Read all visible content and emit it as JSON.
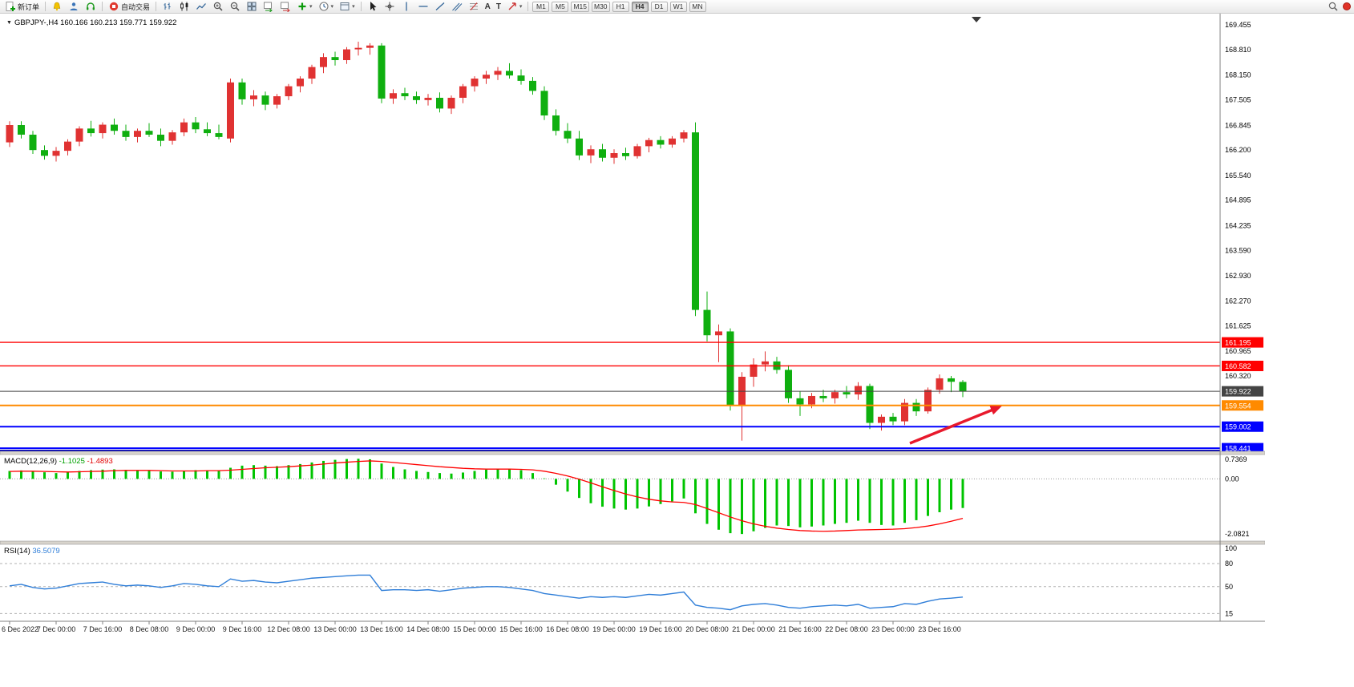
{
  "toolbar": {
    "new_order_label": "新订单",
    "auto_trading_label": "自动交易",
    "timeframes": [
      "M1",
      "M5",
      "M15",
      "M30",
      "H1",
      "H4",
      "D1",
      "W1",
      "MN"
    ],
    "active_timeframe": "H4"
  },
  "chart_data": [
    {
      "type": "candlestick",
      "title": "GBPJPY-,H4 160.166 160.213 159.771 159.922",
      "symbol": "GBPJPY-",
      "period": "H4",
      "ohlc_display": {
        "open": "160.166",
        "high": "160.213",
        "low": "159.771",
        "close": "159.922"
      },
      "up_color": "#e03232",
      "down_color": "#0faf0f",
      "ylim": [
        158.36,
        169.75
      ],
      "y_axis_ticks": [
        "169.455",
        "168.810",
        "168.150",
        "167.505",
        "166.845",
        "166.200",
        "165.540",
        "164.895",
        "164.235",
        "163.590",
        "162.930",
        "162.270",
        "161.625",
        "160.965",
        "160.320"
      ],
      "hlines": [
        {
          "label": "161.195",
          "price": 161.195,
          "color": "#ff0000",
          "width": 1.4
        },
        {
          "label": "160.582",
          "price": 160.582,
          "color": "#ff0000",
          "width": 1.4
        },
        {
          "label": "159.922",
          "price": 159.922,
          "color": "#444444",
          "width": 1
        },
        {
          "label": "159.554",
          "price": 159.554,
          "color": "#ff8a00",
          "width": 2
        },
        {
          "label": "159.002",
          "price": 159.002,
          "color": "#0000ff",
          "width": 2
        },
        {
          "label": "158.441",
          "price": 158.441,
          "color": "#0000ff",
          "width": 2
        }
      ],
      "time_labels": [
        "6 Dec 2022",
        "7 Dec 00:00",
        "7 Dec 16:00",
        "8 Dec 08:00",
        "9 Dec 00:00",
        "9 Dec 16:00",
        "12 Dec 08:00",
        "13 Dec 00:00",
        "13 Dec 16:00",
        "14 Dec 08:00",
        "15 Dec 00:00",
        "15 Dec 16:00",
        "16 Dec 08:00",
        "19 Dec 00:00",
        "19 Dec 16:00",
        "20 Dec 08:00",
        "21 Dec 00:00",
        "21 Dec 16:00",
        "22 Dec 08:00",
        "23 Dec 00:00",
        "23 Dec 16:00"
      ],
      "candles": [
        [
          166.4,
          166.95,
          166.28,
          166.85
        ],
        [
          166.85,
          166.95,
          166.5,
          166.6
        ],
        [
          166.6,
          166.7,
          166.1,
          166.2
        ],
        [
          166.2,
          166.32,
          165.95,
          166.05
        ],
        [
          166.05,
          166.28,
          165.9,
          166.18
        ],
        [
          166.18,
          166.48,
          166.06,
          166.42
        ],
        [
          166.42,
          166.82,
          166.3,
          166.76
        ],
        [
          166.76,
          166.96,
          166.55,
          166.64
        ],
        [
          166.64,
          166.92,
          166.5,
          166.86
        ],
        [
          166.86,
          167.02,
          166.6,
          166.7
        ],
        [
          166.7,
          166.86,
          166.44,
          166.54
        ],
        [
          166.54,
          166.76,
          166.4,
          166.7
        ],
        [
          166.7,
          166.9,
          166.54,
          166.6
        ],
        [
          166.6,
          166.76,
          166.3,
          166.44
        ],
        [
          166.44,
          166.72,
          166.34,
          166.66
        ],
        [
          166.66,
          167.02,
          166.56,
          166.92
        ],
        [
          166.92,
          167.06,
          166.64,
          166.74
        ],
        [
          166.74,
          166.92,
          166.56,
          166.64
        ],
        [
          166.64,
          166.86,
          166.48,
          166.54
        ],
        [
          166.5,
          168.06,
          166.4,
          167.96
        ],
        [
          167.96,
          168.06,
          167.38,
          167.52
        ],
        [
          167.52,
          167.76,
          167.34,
          167.62
        ],
        [
          167.62,
          167.72,
          167.24,
          167.38
        ],
        [
          167.38,
          167.66,
          167.28,
          167.6
        ],
        [
          167.6,
          167.92,
          167.5,
          167.86
        ],
        [
          167.86,
          168.12,
          167.7,
          168.06
        ],
        [
          168.06,
          168.42,
          167.92,
          168.36
        ],
        [
          168.36,
          168.72,
          168.2,
          168.62
        ],
        [
          168.62,
          168.76,
          168.4,
          168.54
        ],
        [
          168.54,
          168.88,
          168.44,
          168.82
        ],
        [
          168.82,
          169.02,
          168.66,
          168.86
        ],
        [
          168.86,
          168.98,
          168.68,
          168.92
        ],
        [
          168.92,
          168.98,
          167.42,
          167.54
        ],
        [
          167.54,
          167.78,
          167.4,
          167.68
        ],
        [
          167.68,
          167.82,
          167.5,
          167.6
        ],
        [
          167.6,
          167.72,
          167.4,
          167.5
        ],
        [
          167.5,
          167.66,
          167.36,
          167.56
        ],
        [
          167.56,
          167.7,
          167.18,
          167.28
        ],
        [
          167.28,
          167.62,
          167.14,
          167.56
        ],
        [
          167.56,
          167.92,
          167.42,
          167.86
        ],
        [
          167.86,
          168.12,
          167.72,
          168.06
        ],
        [
          168.06,
          168.26,
          167.92,
          168.16
        ],
        [
          168.16,
          168.36,
          168.02,
          168.26
        ],
        [
          168.26,
          168.46,
          168.06,
          168.14
        ],
        [
          168.14,
          168.3,
          167.9,
          168.0
        ],
        [
          168.0,
          168.1,
          167.64,
          167.74
        ],
        [
          167.74,
          167.86,
          166.98,
          167.1
        ],
        [
          167.1,
          167.26,
          166.58,
          166.7
        ],
        [
          166.7,
          166.9,
          166.38,
          166.5
        ],
        [
          166.5,
          166.7,
          165.94,
          166.06
        ],
        [
          166.06,
          166.32,
          165.86,
          166.22
        ],
        [
          166.22,
          166.36,
          165.9,
          166.0
        ],
        [
          166.0,
          166.22,
          165.84,
          166.12
        ],
        [
          166.12,
          166.26,
          165.94,
          166.04
        ],
        [
          166.04,
          166.36,
          165.98,
          166.3
        ],
        [
          166.3,
          166.52,
          166.14,
          166.46
        ],
        [
          166.46,
          166.56,
          166.24,
          166.34
        ],
        [
          166.34,
          166.56,
          166.26,
          166.5
        ],
        [
          166.5,
          166.72,
          166.4,
          166.66
        ],
        [
          166.66,
          166.92,
          161.88,
          162.04
        ],
        [
          162.04,
          162.52,
          161.22,
          161.38
        ],
        [
          161.38,
          161.66,
          160.68,
          161.48
        ],
        [
          161.48,
          161.56,
          159.42,
          159.56
        ],
        [
          159.56,
          160.42,
          158.64,
          160.3
        ],
        [
          160.3,
          160.78,
          160.04,
          160.62
        ],
        [
          160.62,
          160.96,
          160.44,
          160.7
        ],
        [
          160.7,
          160.82,
          160.38,
          160.48
        ],
        [
          160.48,
          160.6,
          159.62,
          159.74
        ],
        [
          159.74,
          159.92,
          159.28,
          159.58
        ],
        [
          159.58,
          159.88,
          159.48,
          159.8
        ],
        [
          159.8,
          159.96,
          159.64,
          159.74
        ],
        [
          159.74,
          159.96,
          159.6,
          159.9
        ],
        [
          159.9,
          160.06,
          159.74,
          159.84
        ],
        [
          159.84,
          160.16,
          159.7,
          160.06
        ],
        [
          160.06,
          160.12,
          158.94,
          159.1
        ],
        [
          159.1,
          159.32,
          158.9,
          159.26
        ],
        [
          159.26,
          159.36,
          159.04,
          159.14
        ],
        [
          159.14,
          159.72,
          159.04,
          159.62
        ],
        [
          159.62,
          159.72,
          159.28,
          159.4
        ],
        [
          159.4,
          160.02,
          159.34,
          159.96
        ],
        [
          159.96,
          160.36,
          159.86,
          160.26
        ],
        [
          160.26,
          160.32,
          159.9,
          160.17
        ],
        [
          160.166,
          160.213,
          159.771,
          159.922
        ]
      ],
      "annotation_arrow": {
        "color": "#e8192c",
        "from": [
          1135,
          536
        ],
        "to": [
          1246,
          491
        ]
      }
    },
    {
      "type": "bar",
      "name": "MACD",
      "label": "MACD(12,26,9)",
      "value_macd": "-1.1025",
      "value_signal": "-1.4893",
      "bar_color": "#00c400",
      "signal_color": "#ff0000",
      "y_ticks": [
        "0.7369",
        "0.00",
        "-2.0821"
      ],
      "ylim": [
        -2.35,
        0.92
      ],
      "values": [
        0.3,
        0.32,
        0.28,
        0.25,
        0.22,
        0.25,
        0.3,
        0.33,
        0.35,
        0.36,
        0.34,
        0.32,
        0.3,
        0.28,
        0.27,
        0.3,
        0.33,
        0.32,
        0.3,
        0.42,
        0.5,
        0.52,
        0.5,
        0.48,
        0.52,
        0.56,
        0.62,
        0.68,
        0.72,
        0.75,
        0.76,
        0.74,
        0.58,
        0.45,
        0.36,
        0.3,
        0.26,
        0.22,
        0.2,
        0.24,
        0.3,
        0.35,
        0.38,
        0.38,
        0.33,
        0.22,
        0.02,
        -0.22,
        -0.48,
        -0.72,
        -0.92,
        -1.05,
        -1.12,
        -1.16,
        -1.12,
        -1.04,
        -0.95,
        -0.85,
        -0.74,
        -1.3,
        -1.7,
        -1.92,
        -2.05,
        -2.08,
        -1.98,
        -1.85,
        -1.76,
        -1.78,
        -1.83,
        -1.8,
        -1.76,
        -1.7,
        -1.66,
        -1.58,
        -1.66,
        -1.74,
        -1.76,
        -1.66,
        -1.56,
        -1.4,
        -1.26,
        -1.16,
        -1.1
      ],
      "signal": [
        0.28,
        0.29,
        0.29,
        0.28,
        0.27,
        0.26,
        0.27,
        0.28,
        0.29,
        0.31,
        0.32,
        0.32,
        0.32,
        0.31,
        0.3,
        0.3,
        0.3,
        0.31,
        0.31,
        0.33,
        0.36,
        0.39,
        0.42,
        0.44,
        0.46,
        0.49,
        0.52,
        0.56,
        0.6,
        0.63,
        0.66,
        0.68,
        0.66,
        0.62,
        0.58,
        0.54,
        0.5,
        0.46,
        0.43,
        0.4,
        0.38,
        0.37,
        0.37,
        0.37,
        0.36,
        0.34,
        0.29,
        0.21,
        0.11,
        -0.01,
        -0.15,
        -0.3,
        -0.44,
        -0.57,
        -0.68,
        -0.77,
        -0.83,
        -0.87,
        -0.89,
        -0.97,
        -1.12,
        -1.28,
        -1.44,
        -1.58,
        -1.7,
        -1.79,
        -1.86,
        -1.91,
        -1.95,
        -1.97,
        -1.98,
        -1.97,
        -1.95,
        -1.93,
        -1.92,
        -1.91,
        -1.9,
        -1.88,
        -1.84,
        -1.78,
        -1.7,
        -1.6,
        -1.49
      ]
    },
    {
      "type": "line",
      "name": "RSI",
      "label": "RSI(14)",
      "value": "36.5079",
      "line_color": "#2f7ed8",
      "y_ticks": [
        "100",
        "80",
        "50",
        "15"
      ],
      "levels": [
        80,
        50,
        15
      ],
      "ylim": [
        5,
        105
      ],
      "values": [
        51,
        53,
        49,
        47,
        48,
        51,
        54,
        55,
        56,
        53,
        51,
        52,
        51,
        49,
        51,
        54,
        53,
        51,
        50,
        60,
        57,
        58,
        56,
        55,
        57,
        59,
        61,
        62,
        63,
        64,
        65,
        65,
        45,
        46,
        46,
        45,
        46,
        44,
        46,
        48,
        49,
        50,
        50,
        49,
        47,
        45,
        41,
        39,
        37,
        35,
        37,
        36,
        37,
        36,
        38,
        40,
        39,
        41,
        43,
        26,
        23,
        22,
        20,
        25,
        27,
        28,
        26,
        23,
        22,
        24,
        25,
        26,
        25,
        27,
        22,
        23,
        24,
        28,
        27,
        31,
        34,
        35,
        36.5
      ]
    }
  ]
}
